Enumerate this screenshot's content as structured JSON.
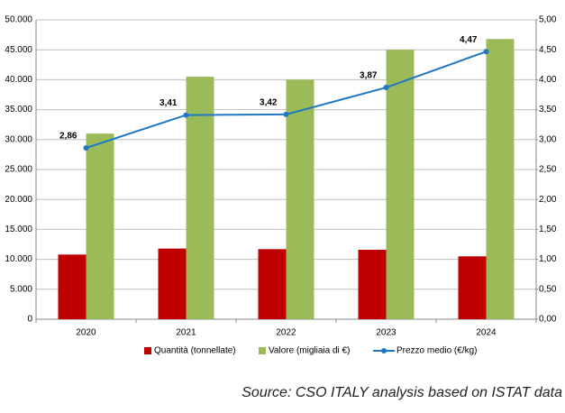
{
  "chart_data": {
    "type": "bar",
    "categories": [
      "2020",
      "2021",
      "2022",
      "2023",
      "2024"
    ],
    "series": [
      {
        "name": "Quantità (tonnellate)",
        "color": "#c00000",
        "type": "bar",
        "values": [
          10800,
          11800,
          11700,
          11600,
          10500
        ]
      },
      {
        "name": "Valore (migliaia di €)",
        "color": "#9bbb59",
        "type": "bar",
        "values": [
          31000,
          40500,
          40000,
          45000,
          46800
        ]
      },
      {
        "name": "Prezzo medio (€/kg)",
        "color": "#1f77c4",
        "type": "line",
        "axis": "y2",
        "values": [
          2.86,
          3.41,
          3.42,
          3.87,
          4.47
        ],
        "value_labels": [
          "2,86",
          "3,41",
          "3,42",
          "3,87",
          "4,47"
        ]
      }
    ],
    "ylim": [
      0,
      50000
    ],
    "yticks": [
      0,
      {
        "value": 5000,
        "label": "5.000"
      },
      {
        "value": 10000,
        "label": "10.000"
      },
      {
        "value": 15000,
        "label": "15.000"
      },
      {
        "value": 20000,
        "label": "20.000"
      },
      {
        "value": 25000,
        "label": "25.000"
      },
      {
        "value": 30000,
        "label": "30.000"
      },
      {
        "value": 35000,
        "label": "35.000"
      },
      {
        "value": 40000,
        "label": "40.000"
      },
      {
        "value": 45000,
        "label": "45.000"
      },
      {
        "value": 50000,
        "label": "50.000"
      }
    ],
    "y2lim": [
      0,
      5
    ],
    "y2ticks": [
      {
        "value": 0,
        "label": "0,00"
      },
      {
        "value": 0.5,
        "label": "0,50"
      },
      {
        "value": 1,
        "label": "1,00"
      },
      {
        "value": 1.5,
        "label": "1,50"
      },
      {
        "value": 2,
        "label": "2,00"
      },
      {
        "value": 2.5,
        "label": "2,50"
      },
      {
        "value": 3,
        "label": "3,00"
      },
      {
        "value": 3.5,
        "label": "3,50"
      },
      {
        "value": 4,
        "label": "4,00"
      },
      {
        "value": 4.5,
        "label": "4,50"
      },
      {
        "value": 5,
        "label": "5,00"
      }
    ],
    "grid": true,
    "legend": "bottom",
    "source": "Source: CSO ITALY analysis based on ISTAT data"
  }
}
